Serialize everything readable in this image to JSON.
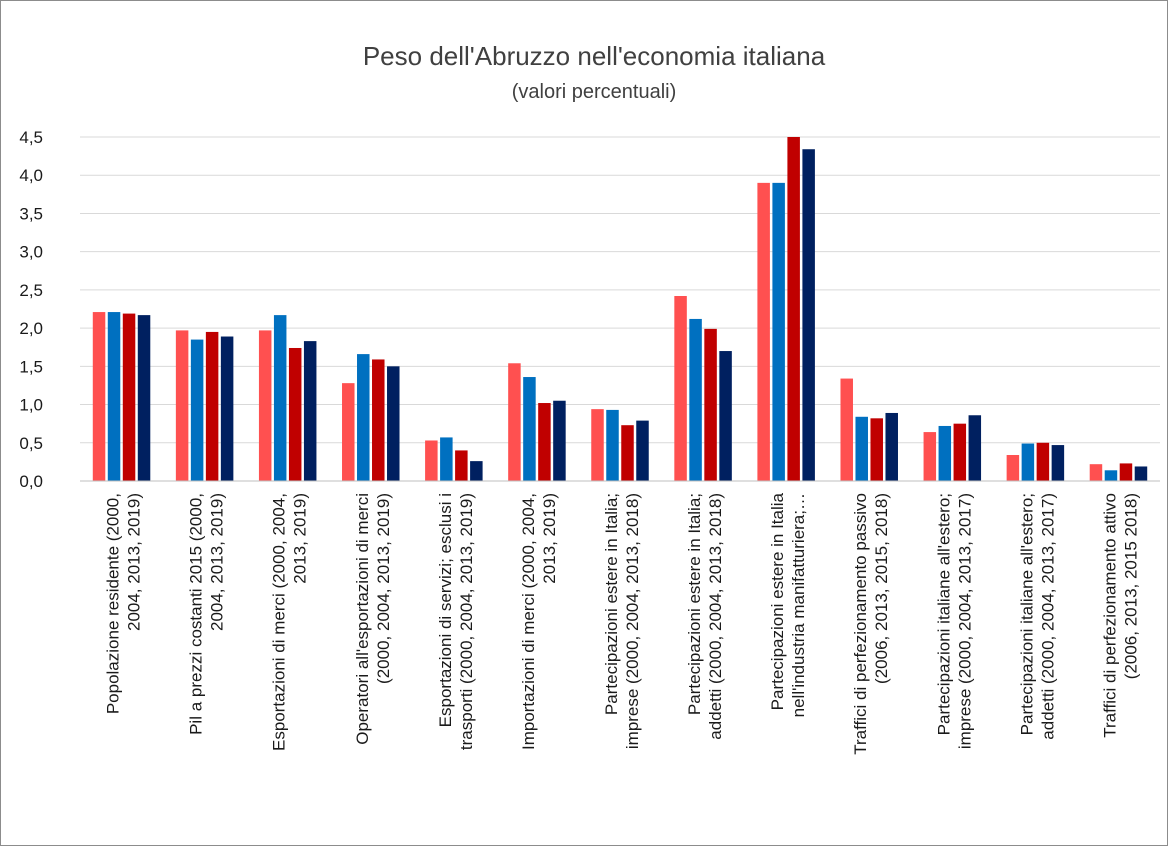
{
  "chart_data": {
    "type": "bar",
    "title": "Peso dell'Abruzzo nell'economia italiana",
    "subtitle": "(valori percentuali)",
    "ylim": [
      0,
      4.5
    ],
    "yticks": [
      "0,0",
      "0,5",
      "1,0",
      "1,5",
      "2,0",
      "2,5",
      "3,0",
      "3,5",
      "4,0",
      "4,5"
    ],
    "grid": true,
    "legend": "none",
    "colors": [
      "#ff5050",
      "#0070c0",
      "#c00000",
      "#002060"
    ],
    "categories": [
      [
        "Popolazione residente (2000,",
        "2004, 2013, 2019)"
      ],
      [
        "Pil a prezzi costanti 2015 (2000,",
        "2004, 2013, 2019)"
      ],
      [
        "Esportazioni di merci (2000, 2004,",
        "2013, 2019)"
      ],
      [
        "Operatori all'esportazioni di merci",
        "(2000, 2004, 2013, 2019)"
      ],
      [
        "Esportazioni di servizi; esclusi i",
        "trasporti (2000, 2004, 2013, 2019)"
      ],
      [
        "Importazioni di merci (2000, 2004,",
        "2013, 2019)"
      ],
      [
        "Partecipazioni estere in Italia;",
        "imprese (2000, 2004, 2013, 2018)"
      ],
      [
        "Partecipazioni estere in Italia;",
        "addetti (2000, 2004, 2013, 2018)"
      ],
      [
        "Partecipazioni estere in Italia",
        "nell'industria manifatturiera;…"
      ],
      [
        "Traffici di perfezionamento passivo",
        "(2006, 2013, 2015, 2018)"
      ],
      [
        "Partecipazioni italiane all'estero;",
        "imprese (2000, 2004, 2013, 2017)"
      ],
      [
        "Partecipazioni italiane all'estero;",
        "addetti (2000, 2004, 2013, 2017)"
      ],
      [
        "Traffici di perfezionamento attivo",
        "(2006, 2013, 2015 2018)"
      ]
    ],
    "values": [
      [
        2.21,
        2.21,
        2.19,
        2.17
      ],
      [
        1.97,
        1.85,
        1.95,
        1.89
      ],
      [
        1.97,
        2.17,
        1.74,
        1.83
      ],
      [
        1.28,
        1.66,
        1.59,
        1.5
      ],
      [
        0.53,
        0.57,
        0.4,
        0.26
      ],
      [
        1.54,
        1.36,
        1.02,
        1.05
      ],
      [
        0.94,
        0.93,
        0.73,
        0.79
      ],
      [
        2.42,
        2.12,
        1.99,
        1.7
      ],
      [
        3.9,
        3.9,
        4.52,
        4.34
      ],
      [
        1.34,
        0.84,
        0.82,
        0.89
      ],
      [
        0.64,
        0.72,
        0.75,
        0.86
      ],
      [
        0.34,
        0.49,
        0.5,
        0.47
      ],
      [
        0.22,
        0.14,
        0.23,
        0.19
      ]
    ]
  }
}
